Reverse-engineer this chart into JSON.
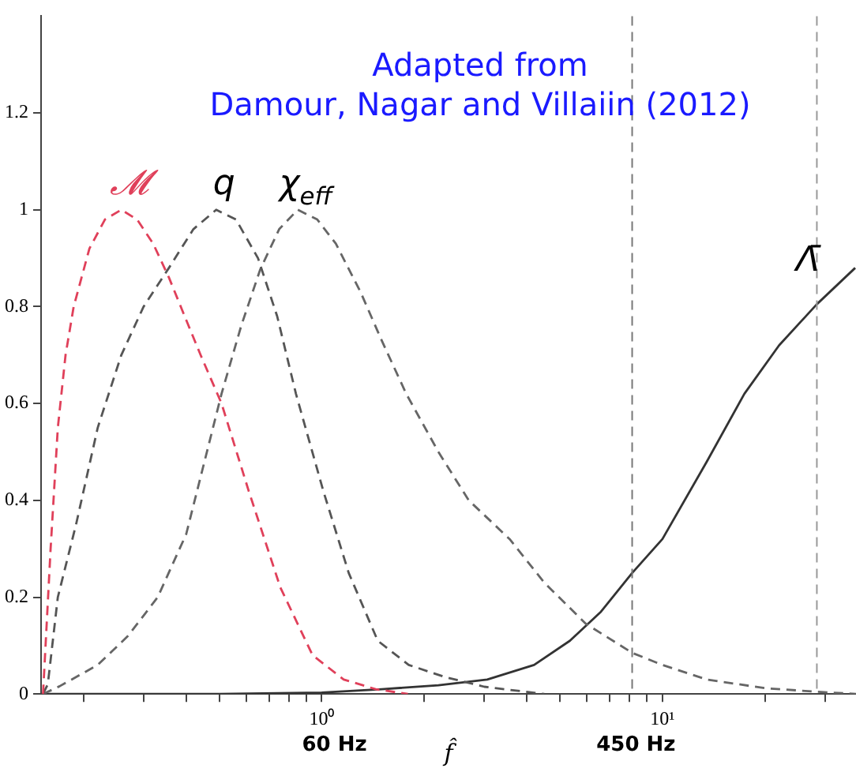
{
  "chart_data": {
    "type": "line",
    "title": "Adapted from\nDamour, Nagar and Villaiin (2012)",
    "xlabel": "f̂",
    "annotations": [
      "60 Hz",
      "450 Hz"
    ],
    "xlim": [
      0.15,
      37
    ],
    "ylim": [
      0,
      1.4
    ],
    "xticks": [
      {
        "value": 0.2,
        "label": null
      },
      {
        "value": 0.3,
        "label": null
      },
      {
        "value": 0.4,
        "label": null
      },
      {
        "value": 0.5,
        "label": null
      },
      {
        "value": 0.6,
        "label": null
      },
      {
        "value": 0.7,
        "label": null
      },
      {
        "value": 0.8,
        "label": null
      },
      {
        "value": 0.9,
        "label": null
      },
      {
        "value": 1,
        "label": "10⁰"
      },
      {
        "value": 2,
        "label": null
      },
      {
        "value": 3,
        "label": null
      },
      {
        "value": 4,
        "label": null
      },
      {
        "value": 5,
        "label": null
      },
      {
        "value": 6,
        "label": null
      },
      {
        "value": 7,
        "label": null
      },
      {
        "value": 8,
        "label": null
      },
      {
        "value": 9,
        "label": null
      },
      {
        "value": 10,
        "label": "10¹"
      },
      {
        "value": 20,
        "label": null
      },
      {
        "value": 30,
        "label": null
      }
    ],
    "yticks": [
      0,
      0.2,
      0.4,
      0.6,
      0.8,
      1,
      1.2
    ],
    "log": "x",
    "grid": false,
    "legend": false,
    "ref_lines": [
      {
        "axis": "x",
        "value": 8.15,
        "label": null,
        "color": "#777777",
        "line_style": "dashed"
      },
      {
        "axis": "x",
        "value": 28.4,
        "label": null,
        "color": "#999999",
        "line_style": "dashed"
      }
    ],
    "series": [
      {
        "name": "𝓜",
        "color": "#e0405a",
        "line_style": "dashed",
        "x": [
          0.152,
          0.16,
          0.168,
          0.177,
          0.187,
          0.208,
          0.231,
          0.258,
          0.287,
          0.32,
          0.356,
          0.396,
          0.441,
          0.508,
          0.61,
          0.756,
          0.94,
          1.16,
          1.44,
          1.79
        ],
        "values": [
          0,
          0.3,
          0.55,
          0.7,
          0.8,
          0.92,
          0.98,
          1.0,
          0.98,
          0.93,
          0.86,
          0.78,
          0.7,
          0.6,
          0.42,
          0.22,
          0.08,
          0.03,
          0.01,
          0
        ]
      },
      {
        "name": "q",
        "color": "#555555",
        "line_style": "dashed",
        "x": [
          0.152,
          0.157,
          0.168,
          0.19,
          0.22,
          0.258,
          0.3,
          0.356,
          0.42,
          0.49,
          0.56,
          0.65,
          0.74,
          0.84,
          1.01,
          1.2,
          1.46,
          1.8,
          2.3,
          3.0,
          4.5
        ],
        "values": [
          0,
          0.02,
          0.2,
          0.35,
          0.55,
          0.7,
          0.8,
          0.88,
          0.96,
          1.0,
          0.98,
          0.9,
          0.78,
          0.62,
          0.42,
          0.25,
          0.11,
          0.06,
          0.035,
          0.015,
          0
        ]
      },
      {
        "name": "χ$_{eff}$",
        "color": "#666666",
        "line_style": "dashed",
        "x": [
          0.152,
          0.17,
          0.22,
          0.27,
          0.33,
          0.4,
          0.508,
          0.58,
          0.66,
          0.75,
          0.85,
          0.97,
          1.1,
          1.3,
          1.5,
          1.77,
          2.2,
          2.7,
          3.56,
          4.5,
          5.96,
          8.15,
          10,
          13.5,
          20,
          28,
          37
        ],
        "values": [
          0,
          0.016,
          0.06,
          0.12,
          0.2,
          0.33,
          0.62,
          0.76,
          0.877,
          0.96,
          1.0,
          0.98,
          0.93,
          0.83,
          0.73,
          0.62,
          0.5,
          0.4,
          0.32,
          0.23,
          0.145,
          0.085,
          0.06,
          0.03,
          0.012,
          0.005,
          0
        ]
      },
      {
        "name": "Λ̄",
        "color": "#333333",
        "line_style": "solid",
        "x": [
          0.152,
          0.5,
          1.0,
          1.5,
          2.2,
          3.06,
          4.2,
          5.35,
          6.6,
          8.15,
          10,
          13.5,
          17.4,
          22,
          28.4,
          36.8
        ],
        "values": [
          0,
          0,
          0.003,
          0.01,
          0.018,
          0.03,
          0.06,
          0.11,
          0.17,
          0.25,
          0.32,
          0.48,
          0.62,
          0.72,
          0.805,
          0.88
        ]
      }
    ]
  }
}
